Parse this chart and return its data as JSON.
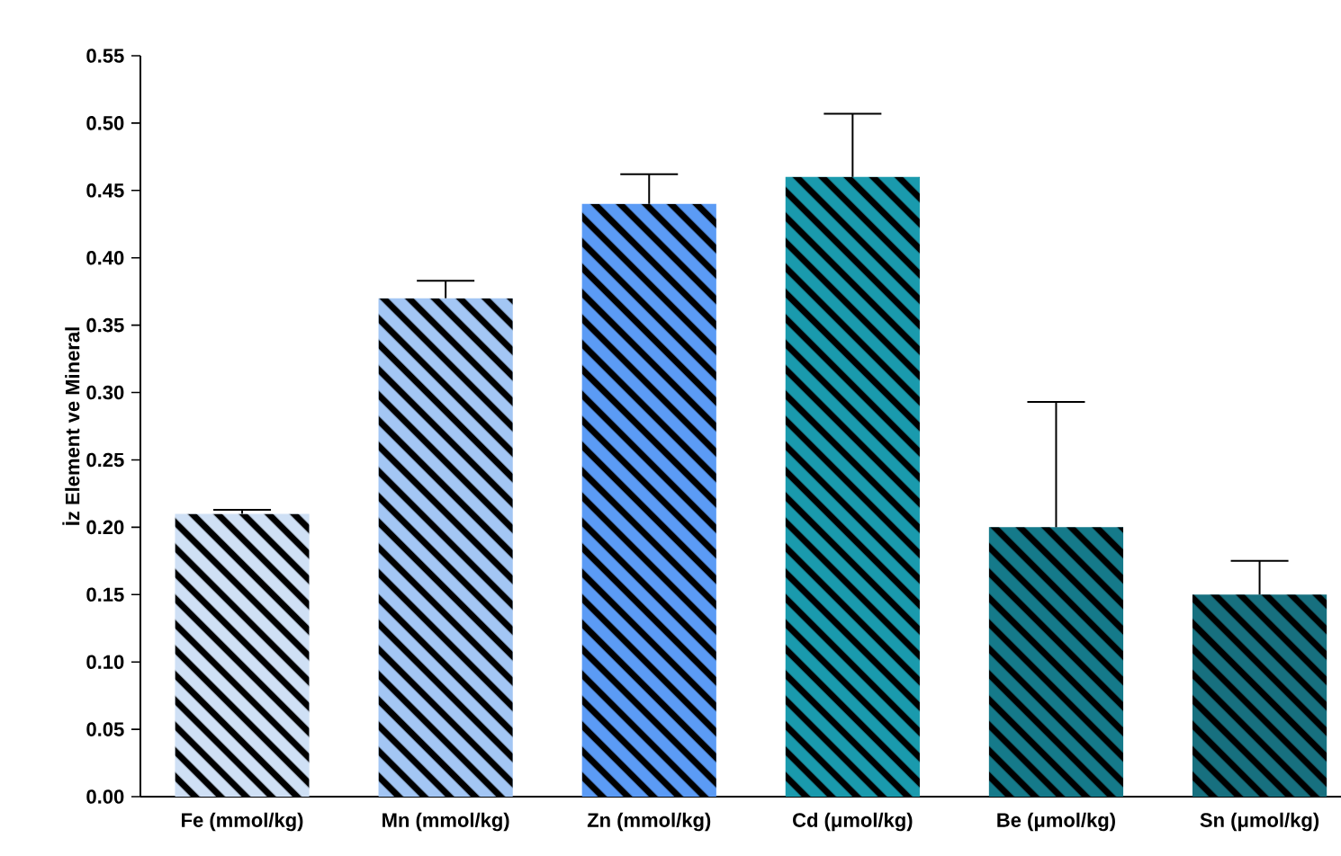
{
  "chart_data": {
    "type": "bar",
    "ylabel": "İz Element ve Mineral",
    "categories": [
      "Fe (mmol/kg)",
      "Mn (mmol/kg)",
      "Zn (mmol/kg)",
      "Cd (μmol/kg)",
      "Be (μmol/kg)",
      "Sn (μmol/kg)"
    ],
    "values": [
      0.21,
      0.37,
      0.44,
      0.46,
      0.2,
      0.15
    ],
    "errors": [
      [
        0.21,
        0.213
      ],
      [
        0.37,
        0.383
      ],
      [
        0.44,
        0.462
      ],
      [
        0.46,
        0.507
      ],
      [
        0.2,
        0.293
      ],
      [
        0.15,
        0.175
      ]
    ],
    "colors": [
      "#cfe0f5",
      "#a3c6f4",
      "#5b9bf5",
      "#1a9aad",
      "#157a8a",
      "#17707f"
    ],
    "ylim": [
      0,
      0.55
    ],
    "yticks": [
      {
        "value": 0,
        "label": "0.00"
      },
      {
        "value": 0.05,
        "label": "0.05"
      },
      {
        "value": 0.1,
        "label": "0.10"
      },
      {
        "value": 0.15,
        "label": "0.15"
      },
      {
        "value": 0.2,
        "label": "0.20"
      },
      {
        "value": 0.25,
        "label": "0.25"
      },
      {
        "value": 0.3,
        "label": "0.30"
      },
      {
        "value": 0.35,
        "label": "0.35"
      },
      {
        "value": 0.4,
        "label": "0.40"
      },
      {
        "value": 0.45,
        "label": "0.45"
      },
      {
        "value": 0.5,
        "label": "0.50"
      },
      {
        "value": 0.55,
        "label": "0.55"
      }
    ],
    "grid": false
  }
}
